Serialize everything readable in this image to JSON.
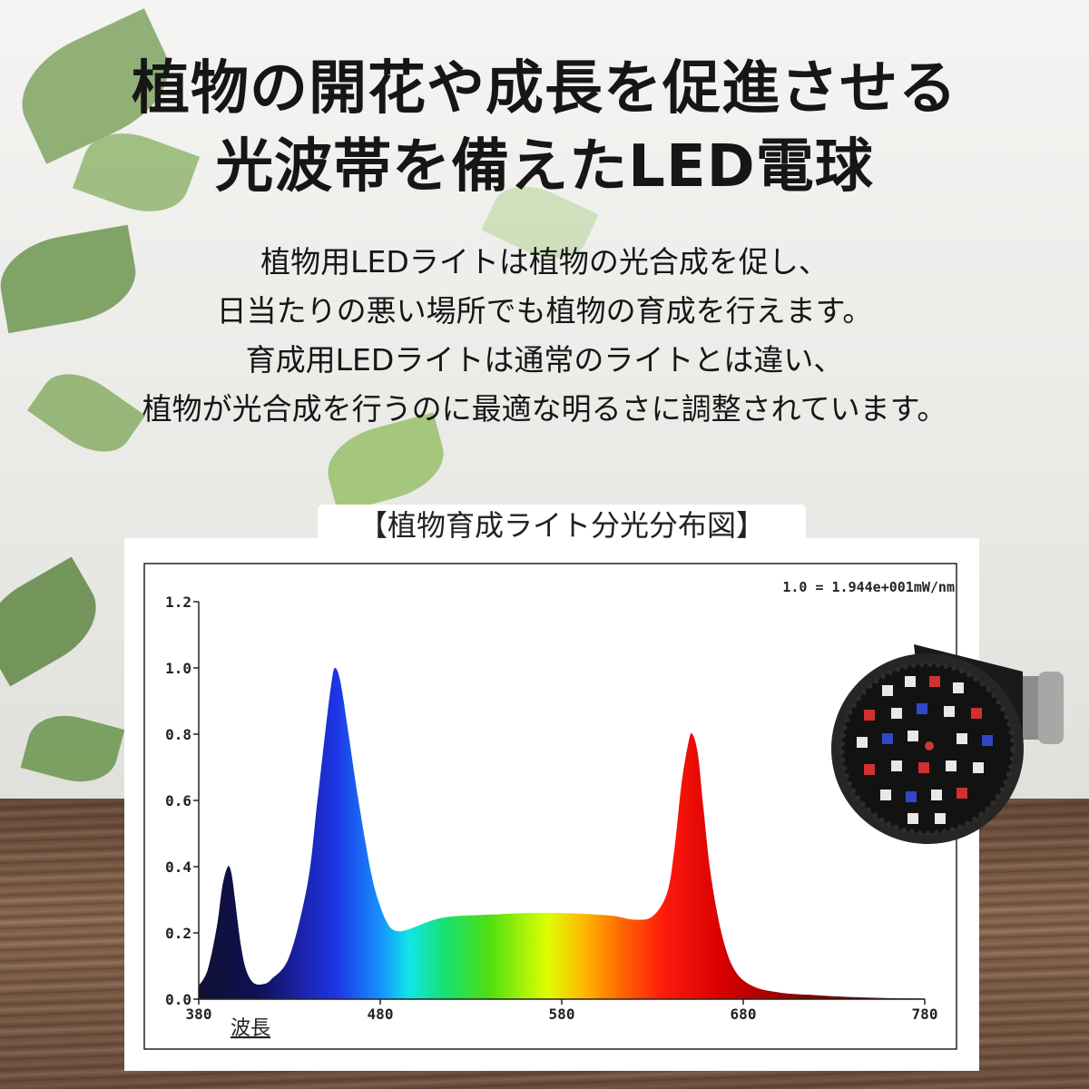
{
  "headline": {
    "line1": "植物の開花や成長を促進させる",
    "line2": "光波帯を備えたLED電球"
  },
  "description": {
    "lines": [
      "植物用LEDライトは植物の光合成を促し、",
      "日当たりの悪い場所でも植物の育成を行えます。",
      "育成用LEDライトは通常のライトとは違い、",
      "植物が光合成を行うのに最適な明るさに調整されています。"
    ]
  },
  "chart_data": {
    "type": "area",
    "title": "【植物育成ライト分光分布図】",
    "annotation": "1.0 = 1.944e+001mW/nm",
    "xlabel": "波長",
    "ylabel": "",
    "xlim": [
      380,
      780
    ],
    "ylim": [
      0,
      1.2
    ],
    "x_ticks": [
      "380",
      "480",
      "580",
      "680",
      "780"
    ],
    "y_ticks": [
      "0.0",
      "0.2",
      "0.4",
      "0.6",
      "0.8",
      "1.0",
      "1.2"
    ],
    "fill": "visible-spectrum gradient",
    "grid": false,
    "legend": "none",
    "series": [
      {
        "x": [
          380,
          385,
          390,
          393,
          396,
          398,
          400,
          403,
          406,
          410,
          415,
          420,
          430,
          440,
          445,
          450,
          453,
          455,
          458,
          462,
          468,
          475,
          480,
          485,
          490,
          495,
          500,
          510,
          520,
          540,
          560,
          580,
          600,
          610,
          620,
          630,
          638,
          642,
          646,
          650,
          652,
          655,
          658,
          662,
          668,
          675,
          685,
          700,
          720,
          740,
          760,
          780
        ],
        "y": [
          0.04,
          0.09,
          0.22,
          0.34,
          0.4,
          0.38,
          0.3,
          0.17,
          0.09,
          0.05,
          0.045,
          0.06,
          0.13,
          0.35,
          0.58,
          0.82,
          0.95,
          1.0,
          0.96,
          0.82,
          0.6,
          0.38,
          0.28,
          0.22,
          0.205,
          0.21,
          0.22,
          0.24,
          0.25,
          0.255,
          0.26,
          0.26,
          0.255,
          0.25,
          0.24,
          0.25,
          0.32,
          0.45,
          0.65,
          0.78,
          0.8,
          0.74,
          0.58,
          0.38,
          0.2,
          0.09,
          0.04,
          0.02,
          0.012,
          0.006,
          0.003,
          0.002
        ]
      }
    ]
  }
}
